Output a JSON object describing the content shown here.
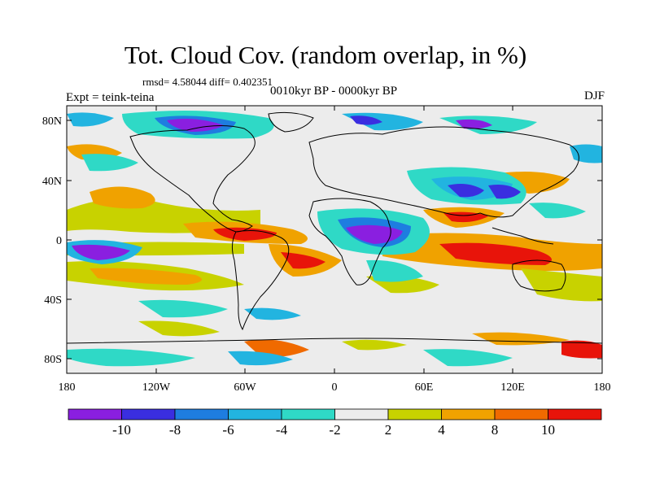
{
  "title": "Tot. Cloud Cov. (random overlap, in %)",
  "stats": "rmsd= 4.58044 diff= 0.402351",
  "left_label": "Expt = teink-teina",
  "center_label": "0010kyr BP - 0000kyr BP",
  "right_label": "DJF",
  "lat_ticks": [
    "80N",
    "40N",
    "0",
    "40S",
    "80S"
  ],
  "lon_ticks": [
    "180",
    "120W",
    "60W",
    "0",
    "60E",
    "120E",
    "180"
  ],
  "colorbar": {
    "labels": [
      "-10",
      "-8",
      "-6",
      "-4",
      "-2",
      "2",
      "4",
      "8",
      "10"
    ],
    "colors": [
      "#8a1fe0",
      "#3a2ee0",
      "#1e7de0",
      "#22b4e0",
      "#2fd9c6",
      "#ececec",
      "#c8d200",
      "#f0a200",
      "#f06a00",
      "#e8140a"
    ]
  },
  "chart_data": {
    "type": "heatmap",
    "title": "Tot. Cloud Cov. (random overlap, in %)",
    "xlabel": "",
    "ylabel": "",
    "xlim": [
      -180,
      180
    ],
    "ylim": [
      -90,
      90
    ],
    "levels": [
      -10,
      -8,
      -6,
      -4,
      -2,
      2,
      4,
      8,
      10
    ],
    "season": "DJF",
    "rmsd": 4.58044,
    "diff": 0.402351
  }
}
